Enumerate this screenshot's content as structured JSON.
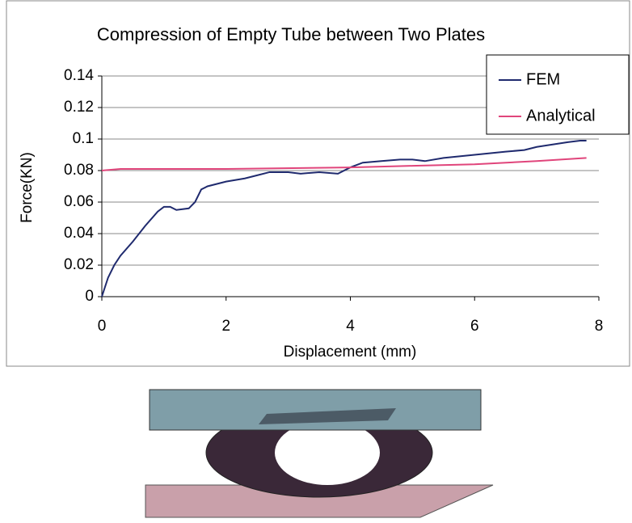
{
  "chart_data": {
    "type": "line",
    "title": "Compression of Empty Tube between Two Plates",
    "x_label": "Displacement (mm)",
    "y_label": "Force(KN)",
    "xlim": [
      0,
      8
    ],
    "xticks": [
      0,
      2,
      4,
      6,
      8
    ],
    "ylim": [
      0,
      0.14
    ],
    "yticks": [
      0,
      0.02,
      0.04,
      0.06,
      0.08,
      0.1,
      0.12,
      0.14
    ],
    "grid": true,
    "legend": "upper right",
    "series": [
      {
        "name": "FEM",
        "color": "#1f2a6e",
        "x": [
          0,
          0.1,
          0.2,
          0.3,
          0.5,
          0.7,
          0.9,
          1.0,
          1.1,
          1.2,
          1.4,
          1.5,
          1.6,
          1.7,
          2.0,
          2.3,
          2.5,
          2.7,
          3.0,
          3.2,
          3.5,
          3.8,
          4.0,
          4.2,
          4.5,
          4.8,
          5.0,
          5.2,
          5.5,
          6.0,
          6.5,
          6.8,
          7.0,
          7.5,
          7.7,
          7.8
        ],
        "values": [
          0,
          0.012,
          0.02,
          0.026,
          0.035,
          0.045,
          0.054,
          0.057,
          0.057,
          0.055,
          0.056,
          0.06,
          0.068,
          0.07,
          0.073,
          0.075,
          0.077,
          0.079,
          0.079,
          0.078,
          0.079,
          0.078,
          0.082,
          0.085,
          0.086,
          0.087,
          0.087,
          0.086,
          0.088,
          0.09,
          0.092,
          0.093,
          0.095,
          0.098,
          0.099,
          0.099
        ]
      },
      {
        "name": "Analytical",
        "color": "#e0457b",
        "x": [
          0,
          0.3,
          2,
          4,
          5,
          6,
          7,
          7.8
        ],
        "values": [
          0.08,
          0.081,
          0.081,
          0.082,
          0.083,
          0.084,
          0.086,
          0.088
        ]
      }
    ]
  }
}
